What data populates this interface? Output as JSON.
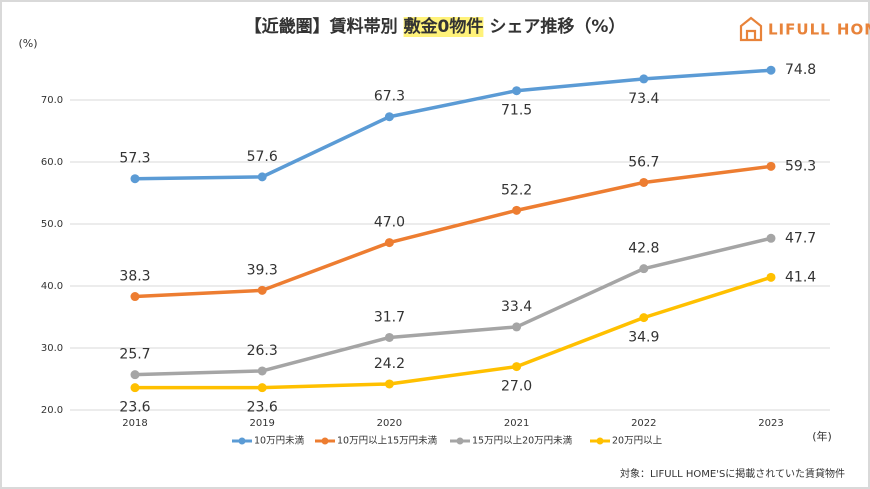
{
  "chart_data": {
    "type": "line",
    "title_parts": [
      "【近畿圏】賃料帯別 ",
      "敷金0物件",
      " シェア推移（%）"
    ],
    "logo": "LIFULL HOME'S",
    "y_unit": "(%)",
    "x_unit": "(年)",
    "note": "対象：LIFULL HOME'Sに掲載されていた賃貸物件",
    "categories": [
      "2018",
      "2019",
      "2020",
      "2021",
      "2022",
      "2023"
    ],
    "ylim": [
      20,
      80
    ],
    "yticks": [
      {
        "value": 20,
        "label": "20.0"
      },
      {
        "value": 30,
        "label": "30.0"
      },
      {
        "value": 40,
        "label": "40.0"
      },
      {
        "value": 50,
        "label": "50.0"
      },
      {
        "value": 60,
        "label": "60.0"
      },
      {
        "value": 70,
        "label": "70.0"
      }
    ],
    "series": [
      {
        "name": "10万円未満",
        "color": "#5b9bd5",
        "values": [
          57.3,
          57.6,
          67.3,
          71.5,
          73.4,
          74.8
        ],
        "value_labels": [
          "57.3",
          "57.6",
          "67.3",
          "71.5",
          "73.4",
          "74.8"
        ]
      },
      {
        "name": "10万円以上15万円未満",
        "color": "#ed7d31",
        "values": [
          38.3,
          39.3,
          47.0,
          52.2,
          56.7,
          59.3
        ],
        "value_labels": [
          "38.3",
          "39.3",
          "47.0",
          "52.2",
          "56.7",
          "59.3"
        ]
      },
      {
        "name": "15万円以上20万円未満",
        "color": "#a5a5a5",
        "values": [
          25.7,
          26.3,
          31.7,
          33.4,
          42.8,
          47.7
        ],
        "value_labels": [
          "25.7",
          "26.3",
          "31.7",
          "33.4",
          "42.8",
          "47.7"
        ]
      },
      {
        "name": "20万円以上",
        "color": "#ffc000",
        "values": [
          23.6,
          23.6,
          24.2,
          27.0,
          34.9,
          41.4
        ],
        "value_labels": [
          "23.6",
          "23.6",
          "24.2",
          "27.0",
          "34.9",
          "41.4"
        ]
      }
    ]
  }
}
